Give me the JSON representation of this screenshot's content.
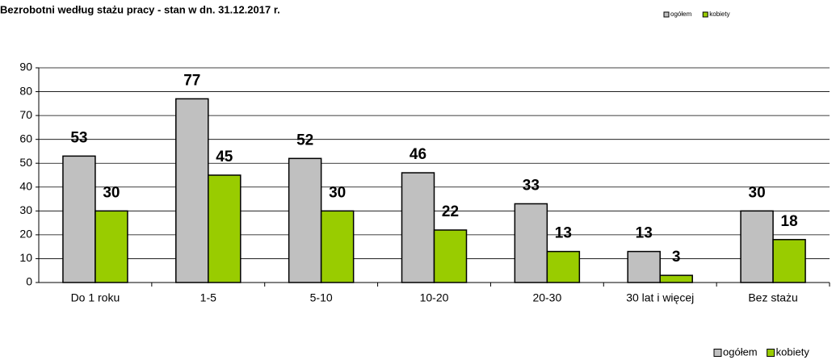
{
  "chart_data": {
    "type": "bar",
    "title": "Bezrobotni według stażu pracy - stan w dn. 31.12.2017 r.",
    "categories": [
      "Do 1 roku",
      "1-5",
      "5-10",
      "10-20",
      "20-30",
      "30 lat i więcej",
      "Bez stażu"
    ],
    "series": [
      {
        "name": "ogółem",
        "color": "#c0c0c0",
        "values": [
          53,
          77,
          52,
          46,
          33,
          13,
          30
        ]
      },
      {
        "name": "kobiety",
        "color": "#99cc00",
        "values": [
          30,
          45,
          30,
          22,
          13,
          3,
          18
        ]
      }
    ],
    "ylim": [
      0,
      90
    ],
    "yticks": [
      0,
      10,
      20,
      30,
      40,
      50,
      60,
      70,
      80,
      90
    ],
    "grid": true
  }
}
